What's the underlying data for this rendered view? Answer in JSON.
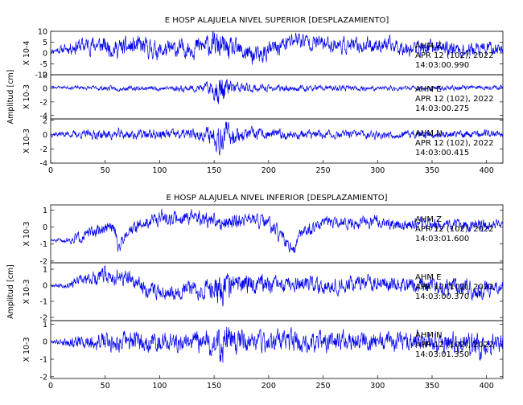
{
  "chart_data": [
    {
      "type": "line",
      "title": "E HOSP ALAJUELA NIVEL SUPERIOR [DESPLAZAMIENTO]",
      "ylabel": "Amplitud [cm]",
      "xlim": [
        0,
        415
      ],
      "x_ticks": [
        "0",
        "50",
        "100",
        "150",
        "200",
        "250",
        "300",
        "350",
        "400"
      ],
      "line_color": "#0000ee",
      "panels": [
        {
          "scale": "X 10-4",
          "ylim": [
            -10,
            10
          ],
          "y_ticks": [
            "10",
            "5",
            "0",
            "-5",
            "-10"
          ],
          "annotation": [
            "AHM  Z",
            "APR 12 (102), 2022",
            "14:03:00.990"
          ],
          "seed": 11,
          "x": [
            0,
            15,
            20,
            40,
            60,
            80,
            100,
            120,
            140,
            150,
            155,
            160,
            170,
            180,
            190,
            200,
            210,
            220,
            225,
            230,
            240,
            260,
            280,
            300,
            320,
            340,
            360,
            380,
            400,
            415
          ],
          "y": [
            1,
            2,
            3,
            4,
            2,
            3,
            1,
            2,
            3,
            4,
            3,
            2,
            1,
            0,
            -2,
            1,
            3,
            5,
            7,
            6,
            5,
            4,
            3,
            4,
            3,
            2,
            3,
            1,
            2,
            2
          ],
          "noise_amp": [
            1,
            2,
            3,
            3.5,
            3.5,
            4,
            3.5,
            3.5,
            4,
            5,
            5.5,
            4.5,
            4,
            4,
            4,
            3.5,
            3.5,
            3.5,
            3.5,
            3.5,
            3,
            3,
            3,
            3,
            3,
            3,
            3,
            3,
            3,
            2
          ]
        },
        {
          "scale": "X 10-3",
          "ylim": [
            -4.5,
            2
          ],
          "y_ticks": [
            "2",
            "0",
            "-2",
            "-4"
          ],
          "annotation": [
            "AHM  E",
            "APR 12 (102), 2022",
            "14:03:00.275"
          ],
          "seed": 23,
          "x": [
            0,
            50,
            100,
            140,
            150,
            155,
            160,
            165,
            170,
            180,
            200,
            250,
            300,
            350,
            415
          ],
          "y": [
            0.2,
            0,
            0,
            0,
            0,
            -0.3,
            0,
            0,
            0,
            0,
            0,
            0,
            0,
            0,
            0.2
          ],
          "noise_amp": [
            0.15,
            0.3,
            0.3,
            0.5,
            1.2,
            2.3,
            1.5,
            1,
            0.8,
            0.6,
            0.4,
            0.35,
            0.3,
            0.3,
            0.3
          ]
        },
        {
          "scale": "X 10-3",
          "ylim": [
            -4,
            2.2
          ],
          "y_ticks": [
            "2",
            "0",
            "-2",
            "-4"
          ],
          "annotation": [
            "AHM  N",
            "APR 12 (102), 2022",
            "14:03:00.415"
          ],
          "seed": 37,
          "x": [
            0,
            50,
            100,
            140,
            150,
            155,
            160,
            165,
            170,
            180,
            200,
            250,
            300,
            350,
            415
          ],
          "y": [
            0.1,
            0,
            0,
            0,
            0,
            0,
            0,
            0,
            0,
            0,
            0,
            0,
            0,
            0,
            0.2
          ],
          "noise_amp": [
            0.3,
            0.6,
            0.6,
            0.7,
            1.3,
            2.2,
            1.6,
            1.2,
            1,
            0.8,
            0.6,
            0.5,
            0.5,
            0.45,
            0.45
          ]
        }
      ]
    },
    {
      "type": "line",
      "title": "E HOSP ALAJUELA NIVEL INFERIOR [DESPLAZAMIENTO]",
      "ylabel": "Amplitud [cm]",
      "xlim": [
        0,
        415
      ],
      "x_ticks": [
        "0",
        "50",
        "100",
        "150",
        "200",
        "250",
        "300",
        "350",
        "400"
      ],
      "line_color": "#0000ee",
      "panels": [
        {
          "scale": "X 10-3",
          "ylim": [
            -2.1,
            1.3
          ],
          "y_ticks": [
            "1",
            "0",
            "-1",
            "-2"
          ],
          "annotation": [
            "AHM  Z",
            "APR 12 (102), 2022",
            "14:03:01.600"
          ],
          "seed": 51,
          "x": [
            0,
            10,
            20,
            40,
            55,
            60,
            62,
            70,
            90,
            100,
            110,
            130,
            150,
            165,
            180,
            200,
            210,
            220,
            222,
            230,
            250,
            280,
            300,
            320,
            340,
            360,
            380,
            400,
            415
          ],
          "y": [
            -0.8,
            -0.8,
            -0.7,
            -0.3,
            0,
            -0.3,
            -1.3,
            -0.2,
            0.3,
            0.6,
            0.5,
            0.6,
            0.3,
            0.3,
            0.5,
            0.2,
            -0.5,
            -1.2,
            -1.7,
            -0.3,
            0.2,
            0.3,
            0.3,
            0.1,
            0.2,
            0.1,
            0.1,
            0.1,
            0.2
          ],
          "noise_amp": [
            0.1,
            0.1,
            0.25,
            0.3,
            0.3,
            0.3,
            0.3,
            0.3,
            0.35,
            0.35,
            0.35,
            0.35,
            0.4,
            0.45,
            0.35,
            0.35,
            0.35,
            0.35,
            0.35,
            0.3,
            0.3,
            0.3,
            0.3,
            0.3,
            0.3,
            0.3,
            0.3,
            0.3,
            0.15
          ]
        },
        {
          "scale": "X 10-3",
          "ylim": [
            -2.2,
            1.4
          ],
          "y_ticks": [
            "1",
            "0",
            "-1",
            "-2"
          ],
          "annotation": [
            "AHM  E",
            "APR 12 (102), 2022",
            "14:03:00.370"
          ],
          "seed": 67,
          "x": [
            0,
            10,
            30,
            50,
            70,
            90,
            110,
            130,
            150,
            155,
            160,
            170,
            190,
            210,
            230,
            260,
            290,
            320,
            350,
            380,
            390,
            395,
            415
          ],
          "y": [
            0,
            0,
            0.3,
            0.6,
            0.4,
            -0.3,
            -0.4,
            -0.2,
            -0.2,
            -0.4,
            0,
            0,
            0.2,
            -0.1,
            0,
            0,
            0.2,
            0.1,
            0,
            0,
            -0.3,
            -0.4,
            -0.1
          ],
          "noise_amp": [
            0.05,
            0.15,
            0.3,
            0.45,
            0.45,
            0.4,
            0.4,
            0.45,
            0.6,
            0.95,
            0.75,
            0.55,
            0.5,
            0.4,
            0.4,
            0.4,
            0.4,
            0.4,
            0.4,
            0.45,
            0.5,
            0.5,
            0.3
          ]
        },
        {
          "scale": "X 10-3",
          "ylim": [
            -2.1,
            1.2
          ],
          "y_ticks": [
            "1",
            "0",
            "-1",
            "-2"
          ],
          "annotation": [
            "AHM  N",
            "APR 12 (102), 2022",
            "14:03:01.350"
          ],
          "seed": 79,
          "x": [
            0,
            20,
            50,
            80,
            100,
            130,
            150,
            155,
            160,
            180,
            200,
            250,
            300,
            350,
            390,
            395,
            415
          ],
          "y": [
            0,
            0,
            0,
            0,
            0,
            0,
            -0.1,
            -0.2,
            0,
            0,
            0,
            0,
            0,
            0,
            -0.2,
            -0.4,
            0
          ],
          "noise_amp": [
            0.05,
            0.3,
            0.45,
            0.5,
            0.45,
            0.5,
            0.7,
            1.0,
            0.8,
            0.55,
            0.5,
            0.5,
            0.45,
            0.45,
            0.6,
            0.6,
            0.4
          ]
        }
      ]
    }
  ]
}
